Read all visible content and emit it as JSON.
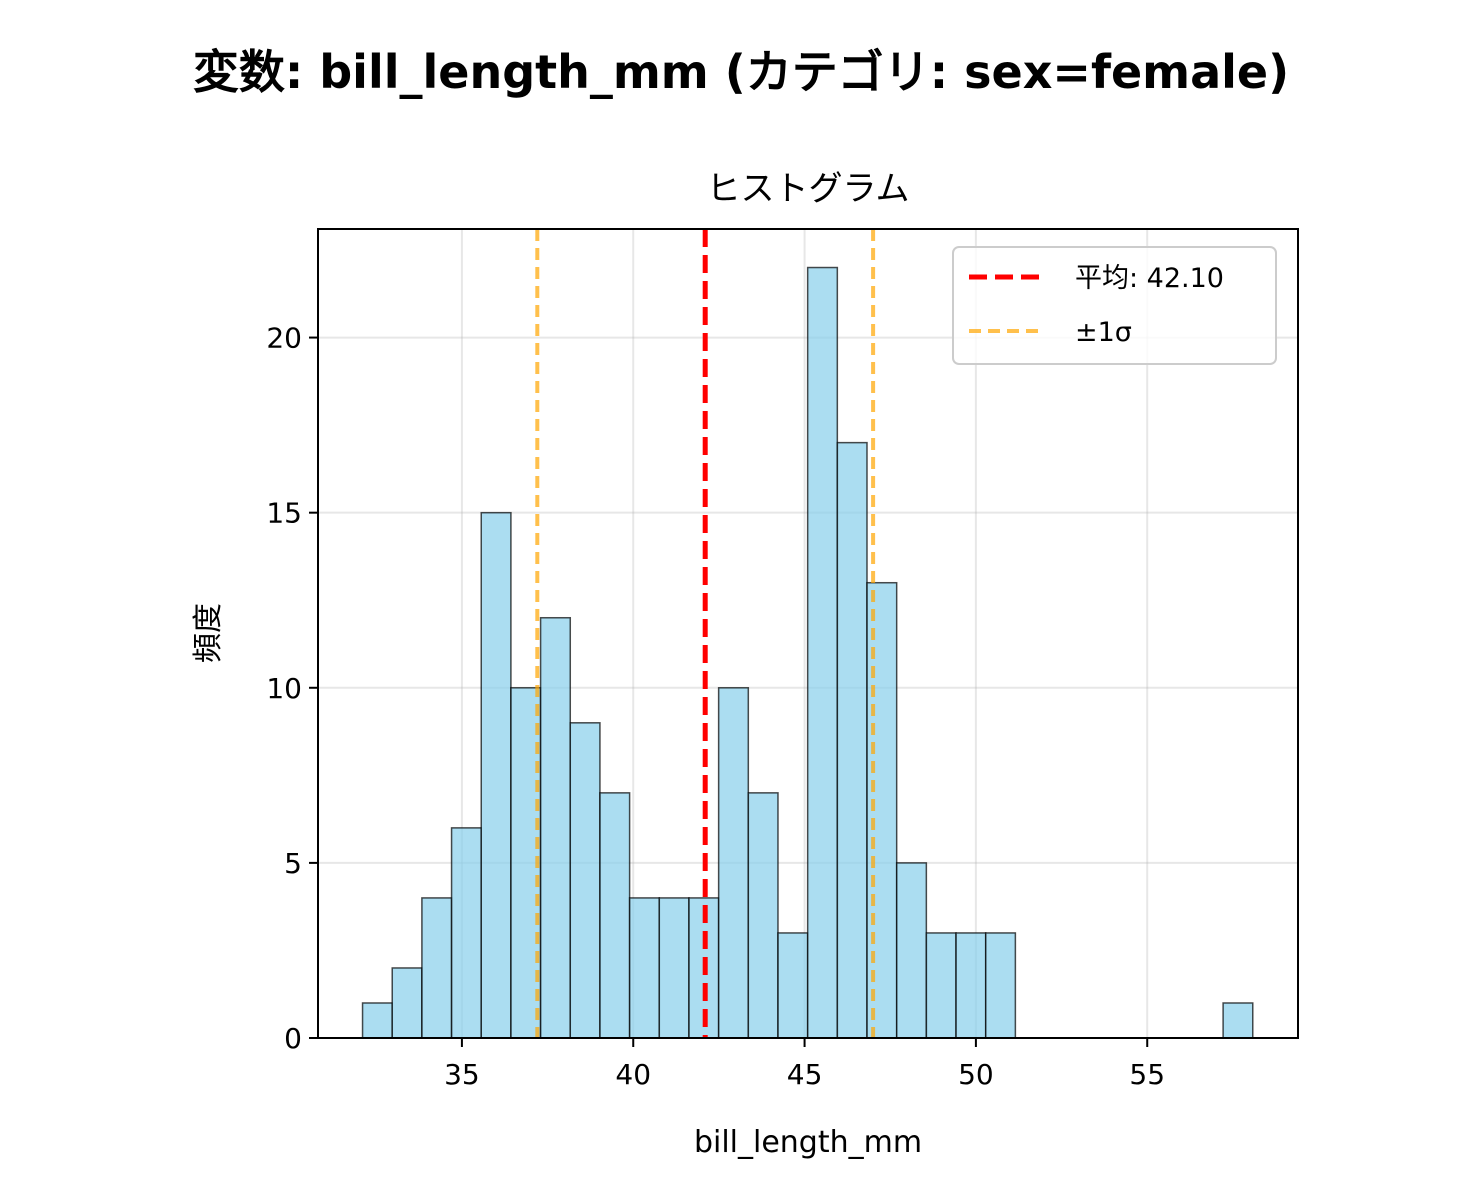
{
  "figure": {
    "suptitle": "変数: bill_length_mm (カテゴリ: sex=female)"
  },
  "chart_data": {
    "type": "bar",
    "subtype": "histogram",
    "title": "ヒストグラム",
    "xlabel": "bill_length_mm",
    "ylabel": "頻度",
    "xlim": [
      30.8,
      59.4
    ],
    "ylim": [
      0,
      23.1
    ],
    "xticks": [
      35,
      40,
      45,
      50,
      55
    ],
    "yticks": [
      0,
      5,
      10,
      15,
      20
    ],
    "grid": true,
    "bin_edges": [
      32.1,
      32.966,
      33.832,
      34.698,
      35.564,
      36.43,
      37.296,
      38.162,
      39.028,
      39.894,
      40.76,
      41.626,
      42.492,
      43.358,
      44.224,
      45.09,
      45.956,
      46.822,
      47.688,
      48.554,
      49.42,
      50.286,
      51.152,
      52.018,
      52.884,
      53.75,
      54.616,
      55.482,
      56.348,
      57.214,
      58.08
    ],
    "counts": [
      1,
      2,
      4,
      6,
      15,
      10,
      12,
      9,
      7,
      4,
      4,
      4,
      10,
      7,
      3,
      22,
      17,
      13,
      5,
      3,
      3,
      3,
      0,
      0,
      0,
      0,
      0,
      0,
      0,
      1
    ],
    "bar_color": "#87CEEB",
    "bar_edge_color": "#000000",
    "mean": 42.1,
    "std_lines": [
      37.2,
      47.0
    ],
    "mean_color": "#FF0000",
    "std_color": "#FFA500",
    "legend": {
      "placement": "upper-right",
      "entries": [
        {
          "label": "平均: 42.10",
          "style": "mean"
        },
        {
          "label": "±1σ",
          "style": "std"
        }
      ]
    }
  }
}
